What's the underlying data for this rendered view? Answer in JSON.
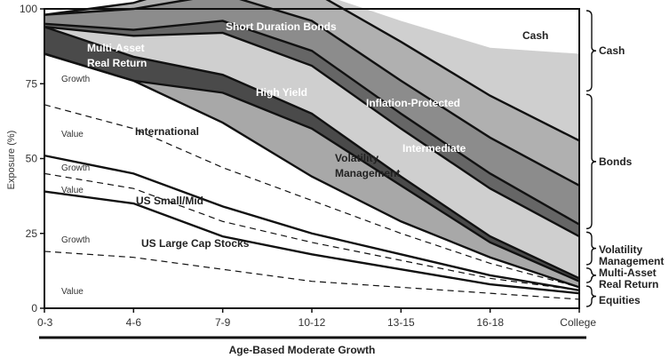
{
  "chart_data": {
    "type": "area",
    "xlabel": "Age-Based Moderate Growth",
    "ylabel": "Exposure (%)",
    "categories": [
      "0-3",
      "4-6",
      "7-9",
      "10-12",
      "13-15",
      "16-18",
      "College"
    ],
    "ylim": [
      0,
      100
    ],
    "yticks": [
      0,
      25,
      50,
      75,
      100
    ],
    "grid": false,
    "series": [
      {
        "name": "Value",
        "values": [
          19,
          17,
          13,
          9,
          7,
          5,
          3
        ],
        "color": "#ffffff"
      },
      {
        "name": "Growth",
        "values": [
          20,
          18,
          11,
          9,
          6,
          3,
          2
        ],
        "color": "#ffffff"
      },
      {
        "name": "Value",
        "values": [
          6,
          5,
          5,
          4,
          3,
          2,
          1
        ],
        "color": "#ffffff"
      },
      {
        "name": "Growth",
        "values": [
          6,
          5,
          5,
          3,
          2,
          1,
          0
        ],
        "color": "#ffffff"
      },
      {
        "name": "Value",
        "values": [
          17,
          15,
          13,
          11,
          7,
          4,
          1
        ],
        "color": "#ffffff"
      },
      {
        "name": "Growth",
        "values": [
          17,
          16,
          15,
          8,
          4,
          2,
          0
        ],
        "color": "#ffffff"
      },
      {
        "name": "Volatility Management",
        "values": [
          0,
          0,
          10,
          16,
          12,
          5,
          2
        ],
        "color": "#a8a8a8"
      },
      {
        "name": "Multi-Asset Real Return",
        "values": [
          9,
          8,
          6,
          5,
          3,
          2,
          1
        ],
        "color": "#4a4a4a"
      },
      {
        "name": "Intermediate",
        "values": [
          0,
          7,
          14,
          16,
          16,
          16,
          14
        ],
        "color": "#cfcfcf"
      },
      {
        "name": "High Yield",
        "values": [
          1,
          2,
          4,
          5,
          5,
          5,
          4
        ],
        "color": "#666666"
      },
      {
        "name": "Inflation-Protected",
        "values": [
          3,
          7,
          9,
          10,
          11,
          12,
          13
        ],
        "color": "#8c8c8c"
      },
      {
        "name": "Short Duration Bonds",
        "values": [
          0,
          2,
          6,
          10,
          13,
          14,
          15
        ],
        "color": "#b0b0b0"
      },
      {
        "name": "Cash",
        "values": [
          0,
          0,
          0,
          0,
          7,
          16,
          29
        ],
        "color": "#cfcfcf"
      }
    ],
    "annotations": [
      {
        "text": "Short Duration Bonds",
        "color": "#ffffff"
      },
      {
        "text": "Cash",
        "color": "#222222"
      },
      {
        "text": "Multi-Asset",
        "color": "#ffffff"
      },
      {
        "text": "Real Return",
        "color": "#ffffff"
      },
      {
        "text": "High Yield",
        "color": "#ffffff"
      },
      {
        "text": "Inflation-Protected",
        "color": "#ffffff"
      },
      {
        "text": "International",
        "color": "#222222"
      },
      {
        "text": "Intermediate",
        "color": "#ffffff"
      },
      {
        "text": "Volatility",
        "color": "#222222"
      },
      {
        "text": "Management",
        "color": "#222222"
      },
      {
        "text": "US Small/Mid",
        "color": "#222222"
      },
      {
        "text": "US Large Cap Stocks",
        "color": "#222222"
      }
    ],
    "style_sublabels": [
      "Growth",
      "Value",
      "Growth",
      "Value",
      "Growth",
      "Value"
    ],
    "right_groups": [
      {
        "label": "Cash",
        "from": 72,
        "to": 100
      },
      {
        "label": "Bonds",
        "from": 26,
        "to": 72
      },
      {
        "label": "Volatility Management",
        "from": 14,
        "to": 26
      },
      {
        "label": "Multi-Asset Real Return",
        "from": 8,
        "to": 14
      },
      {
        "label": "Equities",
        "from": 0,
        "to": 8
      }
    ]
  }
}
